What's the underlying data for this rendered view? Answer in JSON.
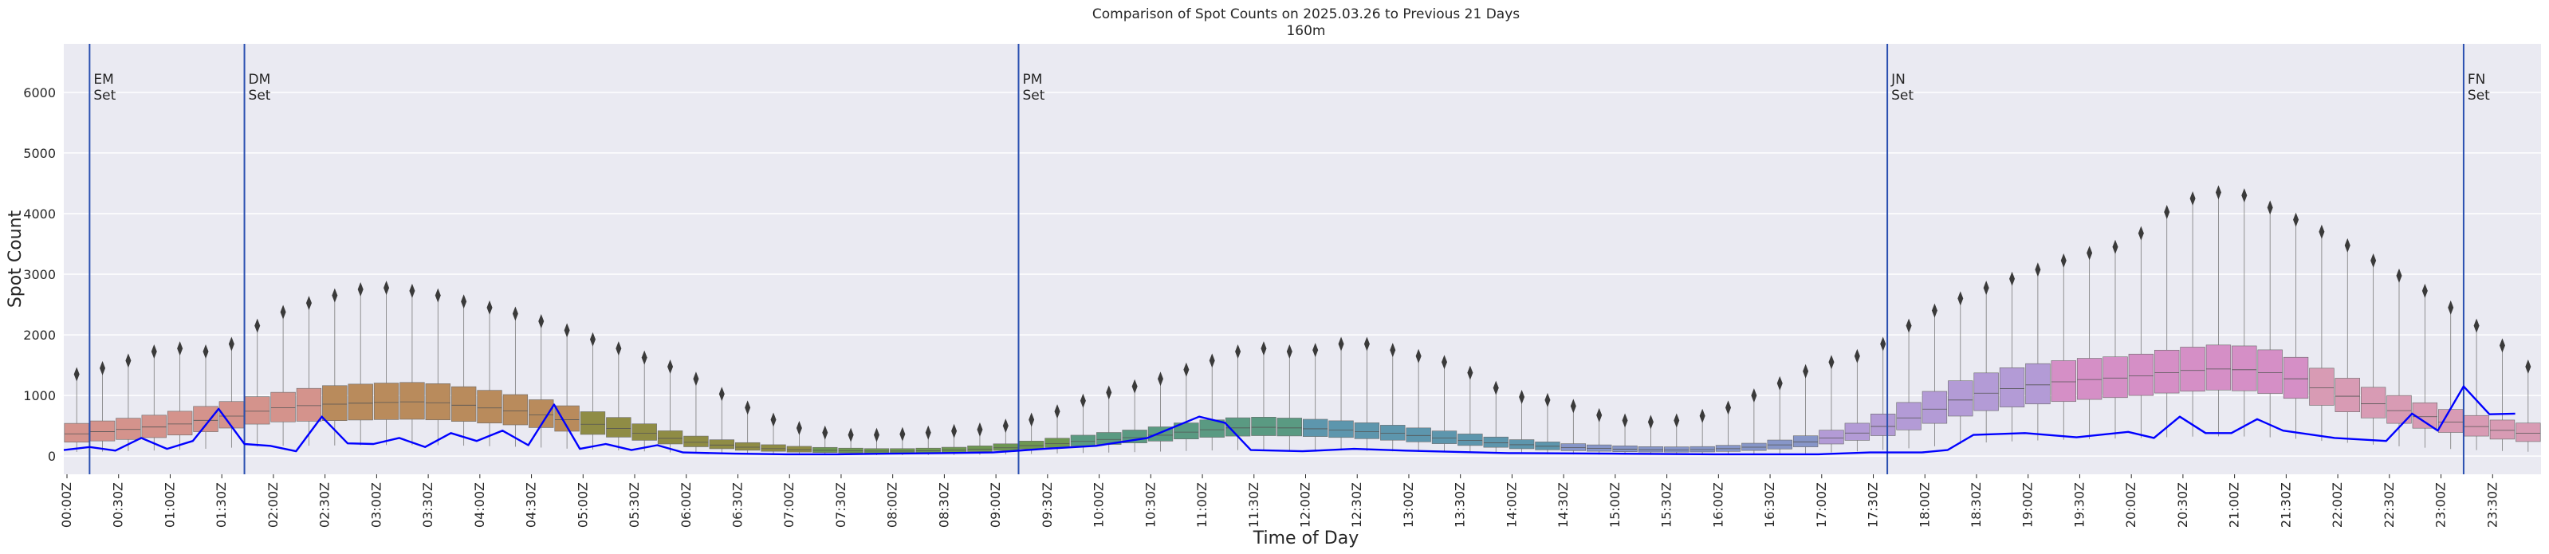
{
  "chart_data": {
    "type": "box",
    "title": "Comparison of Spot Counts on 2025.03.26 to Previous 21 Days",
    "subtitle": "160m",
    "xlabel": "Time of Day",
    "ylabel": "Spot Count",
    "ylim": [
      -300,
      6800
    ],
    "yticks": [
      0,
      1000,
      2000,
      3000,
      4000,
      5000,
      6000
    ],
    "xticks": [
      "00:00Z",
      "00:30Z",
      "01:00Z",
      "01:30Z",
      "02:00Z",
      "02:30Z",
      "03:00Z",
      "03:30Z",
      "04:00Z",
      "04:30Z",
      "05:00Z",
      "05:30Z",
      "06:00Z",
      "06:30Z",
      "07:00Z",
      "07:30Z",
      "08:00Z",
      "08:30Z",
      "09:00Z",
      "09:30Z",
      "10:00Z",
      "10:30Z",
      "11:00Z",
      "11:30Z",
      "12:00Z",
      "12:30Z",
      "13:00Z",
      "13:30Z",
      "14:00Z",
      "14:30Z",
      "15:00Z",
      "15:30Z",
      "16:00Z",
      "16:30Z",
      "17:00Z",
      "17:30Z",
      "18:00Z",
      "18:30Z",
      "19:00Z",
      "19:30Z",
      "20:00Z",
      "20:30Z",
      "21:00Z",
      "21:30Z",
      "22:00Z",
      "22:30Z",
      "23:00Z",
      "23:30Z"
    ],
    "bin_minutes": 15,
    "events": [
      {
        "time": "00:15Z",
        "label": "EM\nSet"
      },
      {
        "time": "01:45Z",
        "label": "DM\nSet"
      },
      {
        "time": "09:15Z",
        "label": "PM\nSet"
      },
      {
        "time": "17:40Z",
        "label": "JN\nSet"
      },
      {
        "time": "23:15Z",
        "label": "FN\nSet"
      }
    ],
    "box_median_profile": {
      "times": [
        "00:00Z",
        "00:30Z",
        "01:00Z",
        "01:30Z",
        "02:00Z",
        "02:30Z",
        "03:00Z",
        "03:30Z",
        "04:00Z",
        "04:30Z",
        "05:00Z",
        "05:30Z",
        "06:00Z",
        "06:30Z",
        "07:00Z",
        "07:30Z",
        "08:00Z",
        "08:30Z",
        "09:00Z",
        "09:30Z",
        "10:00Z",
        "10:30Z",
        "11:00Z",
        "11:30Z",
        "12:00Z",
        "12:30Z",
        "13:00Z",
        "13:30Z",
        "14:00Z",
        "14:30Z",
        "15:00Z",
        "15:30Z",
        "16:00Z",
        "16:30Z",
        "17:00Z",
        "17:30Z",
        "18:00Z",
        "18:30Z",
        "19:00Z",
        "19:30Z",
        "20:00Z",
        "20:30Z",
        "21:00Z",
        "21:30Z",
        "22:00Z",
        "22:30Z",
        "23:00Z",
        "23:30Z"
      ],
      "medians": [
        350,
        420,
        500,
        620,
        780,
        850,
        880,
        900,
        820,
        720,
        560,
        420,
        250,
        160,
        110,
        90,
        80,
        90,
        120,
        190,
        260,
        320,
        420,
        480,
        460,
        420,
        360,
        280,
        200,
        150,
        120,
        100,
        110,
        160,
        260,
        420,
        700,
        1000,
        1150,
        1250,
        1300,
        1400,
        1450,
        1350,
        1050,
        800,
        600,
        450
      ],
      "q1": [
        220,
        260,
        320,
        430,
        560,
        580,
        600,
        610,
        560,
        500,
        380,
        290,
        170,
        105,
        70,
        55,
        50,
        58,
        80,
        130,
        180,
        230,
        300,
        340,
        330,
        300,
        250,
        190,
        130,
        95,
        75,
        65,
        70,
        100,
        170,
        290,
        480,
        720,
        840,
        920,
        980,
        1060,
        1100,
        1010,
        780,
        580,
        420,
        300
      ],
      "q3": [
        520,
        600,
        700,
        860,
        1020,
        1150,
        1200,
        1220,
        1120,
        980,
        780,
        590,
        360,
        240,
        170,
        135,
        120,
        135,
        180,
        270,
        370,
        450,
        580,
        650,
        620,
        570,
        490,
        390,
        290,
        215,
        175,
        150,
        160,
        230,
        370,
        600,
        980,
        1330,
        1500,
        1600,
        1650,
        1780,
        1850,
        1720,
        1360,
        1060,
        820,
        620
      ],
      "max": [
        1300,
        1500,
        1800,
        1700,
        2300,
        2600,
        2800,
        2700,
        2500,
        2300,
        2000,
        1700,
        1400,
        900,
        500,
        350,
        350,
        400,
        450,
        650,
        1000,
        1200,
        1500,
        1800,
        1700,
        1900,
        1700,
        1500,
        1000,
        900,
        600,
        550,
        700,
        1100,
        1500,
        1700,
        2300,
        2700,
        3000,
        3300,
        3500,
        4200,
        4400,
        4000,
        3600,
        3100,
        2600,
        2000
      ]
    },
    "series": [
      {
        "name": "2025.03.26",
        "color": "#0000ff",
        "times": [
          "00:00Z",
          "00:15Z",
          "00:30Z",
          "00:45Z",
          "01:00Z",
          "01:15Z",
          "01:30Z",
          "01:45Z",
          "02:00Z",
          "02:15Z",
          "02:30Z",
          "02:45Z",
          "03:00Z",
          "03:15Z",
          "03:30Z",
          "03:45Z",
          "04:00Z",
          "04:15Z",
          "04:30Z",
          "04:45Z",
          "05:00Z",
          "05:15Z",
          "05:30Z",
          "05:45Z",
          "06:00Z",
          "06:30Z",
          "07:00Z",
          "07:30Z",
          "08:00Z",
          "08:30Z",
          "09:00Z",
          "09:30Z",
          "10:00Z",
          "10:30Z",
          "11:00Z",
          "11:15Z",
          "11:30Z",
          "12:00Z",
          "12:30Z",
          "13:00Z",
          "13:30Z",
          "14:00Z",
          "15:00Z",
          "16:00Z",
          "17:00Z",
          "17:30Z",
          "18:00Z",
          "18:15Z",
          "18:30Z",
          "19:00Z",
          "19:30Z",
          "20:00Z",
          "20:15Z",
          "20:30Z",
          "20:45Z",
          "21:00Z",
          "21:15Z",
          "21:30Z",
          "22:00Z",
          "22:30Z",
          "22:45Z",
          "23:00Z",
          "23:15Z",
          "23:30Z",
          "23:45Z"
        ],
        "values": [
          100,
          150,
          90,
          300,
          120,
          250,
          780,
          200,
          170,
          80,
          650,
          210,
          200,
          300,
          150,
          380,
          250,
          420,
          180,
          850,
          120,
          200,
          100,
          180,
          60,
          40,
          30,
          30,
          40,
          50,
          60,
          120,
          170,
          300,
          650,
          550,
          100,
          80,
          120,
          90,
          70,
          50,
          40,
          30,
          30,
          60,
          60,
          100,
          350,
          380,
          310,
          400,
          300,
          650,
          380,
          380,
          610,
          420,
          300,
          250,
          700,
          420,
          1150,
          690,
          700
        ]
      }
    ],
    "box_palette": [
      "#d4938c",
      "#b98b5c",
      "#8f8c45",
      "#6e9752",
      "#5a9a82",
      "#5d96ad",
      "#8796c8",
      "#b39bd6",
      "#d58fc6",
      "#d89bb4"
    ]
  }
}
